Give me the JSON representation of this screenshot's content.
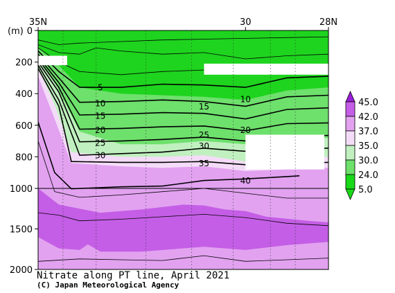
{
  "chart_data": {
    "type": "heatmap",
    "title": "Nitrate along PT line, April 2021",
    "credit": "(C) Japan Meteorological Agency",
    "ylabel": "(m)",
    "ylim": [
      0,
      2000
    ],
    "y_breaks_depth_m": [
      0,
      1000,
      2000
    ],
    "xlim_lat": [
      35,
      28
    ],
    "x_ticks": [
      "35N",
      "30",
      "28N"
    ],
    "y_ticks": [
      "0",
      "200",
      "400",
      "600",
      "800",
      "1000",
      "1500",
      "2000"
    ],
    "contour_labels": [
      {
        "text": "5",
        "lat": 33.5,
        "depth": 360
      },
      {
        "text": "10",
        "lat": 33.5,
        "depth": 460
      },
      {
        "text": "15",
        "lat": 33.5,
        "depth": 540
      },
      {
        "text": "20",
        "lat": 33.5,
        "depth": 630
      },
      {
        "text": "25",
        "lat": 33.5,
        "depth": 710
      },
      {
        "text": "30",
        "lat": 33.5,
        "depth": 790
      },
      {
        "text": "15",
        "lat": 31.0,
        "depth": 480
      },
      {
        "text": "25",
        "lat": 31.0,
        "depth": 660
      },
      {
        "text": "30",
        "lat": 31.0,
        "depth": 730
      },
      {
        "text": "35",
        "lat": 31.0,
        "depth": 840
      },
      {
        "text": "10",
        "lat": 30.0,
        "depth": 435
      },
      {
        "text": "20",
        "lat": 30.0,
        "depth": 630
      },
      {
        "text": "40",
        "lat": 30.0,
        "depth": 950
      }
    ],
    "colorbar": {
      "labels": [
        "45.0",
        "42.0",
        "37.0",
        "35.0",
        "30.0",
        "24.0",
        "5.0"
      ],
      "colors": [
        "#9b1fd8",
        "#c45ee6",
        "#e2a2f0",
        "#f4dcf8",
        "#c0f0bf",
        "#6ee06c",
        "#18d818"
      ]
    },
    "layers": [
      {
        "value": 5.0,
        "color": "#1ed41e",
        "top": [
          [
            35,
            0
          ],
          [
            28,
            0
          ]
        ]
      },
      {
        "value": 24.0,
        "color": "#6ee06c",
        "top": [
          [
            35,
            110
          ],
          [
            34.5,
            220
          ],
          [
            34,
            360
          ],
          [
            33,
            400
          ],
          [
            32,
            410
          ],
          [
            31,
            420
          ],
          [
            30,
            440
          ],
          [
            29,
            380
          ],
          [
            28,
            360
          ]
        ]
      },
      {
        "value": 30.0,
        "color": "#c0f0bf",
        "top": [
          [
            35,
            175
          ],
          [
            34.6,
            330
          ],
          [
            34,
            640
          ],
          [
            33,
            720
          ],
          [
            32,
            720
          ],
          [
            31,
            700
          ],
          [
            30,
            720
          ],
          [
            29,
            690
          ],
          [
            28,
            680
          ]
        ]
      },
      {
        "value": 35.0,
        "color": "#f4dcf8",
        "top": [
          [
            35,
            235
          ],
          [
            34.6,
            470
          ],
          [
            34.2,
            770
          ],
          [
            33,
            800
          ],
          [
            32,
            800
          ],
          [
            31,
            790
          ],
          [
            30,
            830
          ],
          [
            29,
            810
          ],
          [
            28,
            800
          ]
        ]
      },
      {
        "value": 37.0,
        "color": "#e2a2f0",
        "top": [
          [
            35,
            290
          ],
          [
            34.6,
            560
          ],
          [
            34.2,
            840
          ],
          [
            33,
            860
          ],
          [
            32,
            870
          ],
          [
            31,
            860
          ],
          [
            30,
            890
          ],
          [
            29,
            880
          ],
          [
            28,
            870
          ]
        ]
      },
      {
        "value": 42.0,
        "color": "#c45ee6",
        "top": [
          [
            35,
            1000
          ],
          [
            34.5,
            1200
          ],
          [
            33.5,
            1300
          ],
          [
            32.5,
            1260
          ],
          [
            31.5,
            1200
          ],
          [
            31,
            1210
          ],
          [
            30.5,
            1260
          ],
          [
            30,
            1280
          ],
          [
            29.5,
            1350
          ],
          [
            28.5,
            1400
          ],
          [
            28,
            1420
          ]
        ]
      },
      {
        "value": 37.0,
        "color": "#e2a2f0",
        "top": [
          [
            35,
            1600
          ],
          [
            34.5,
            1740
          ],
          [
            34,
            1760
          ],
          [
            33.8,
            1690
          ],
          [
            33.5,
            1780
          ],
          [
            32.5,
            1780
          ],
          [
            31,
            1720
          ],
          [
            30,
            1760
          ],
          [
            29,
            1700
          ],
          [
            28,
            1660
          ]
        ]
      }
    ],
    "contours": [
      {
        "value": 5,
        "bold": true,
        "points": [
          [
            35,
            130
          ],
          [
            34.5,
            260
          ],
          [
            34,
            360
          ],
          [
            33,
            360
          ],
          [
            32,
            340
          ],
          [
            31,
            345
          ],
          [
            30,
            360
          ],
          [
            29,
            300
          ],
          [
            28,
            290
          ]
        ]
      },
      {
        "value": 10,
        "bold": true,
        "points": [
          [
            35,
            150
          ],
          [
            34.5,
            300
          ],
          [
            34,
            455
          ],
          [
            33,
            450
          ],
          [
            32,
            440
          ],
          [
            31,
            450
          ],
          [
            30,
            480
          ],
          [
            29,
            420
          ],
          [
            28,
            410
          ]
        ]
      },
      {
        "value": 15,
        "bold": true,
        "points": [
          [
            35,
            165
          ],
          [
            34.5,
            330
          ],
          [
            34,
            535
          ],
          [
            33,
            530
          ],
          [
            32,
            520
          ],
          [
            31,
            525
          ],
          [
            30,
            560
          ],
          [
            29,
            500
          ],
          [
            28,
            490
          ]
        ]
      },
      {
        "value": 20,
        "bold": true,
        "points": [
          [
            35,
            180
          ],
          [
            34.5,
            360
          ],
          [
            34,
            625
          ],
          [
            33,
            620
          ],
          [
            32,
            610
          ],
          [
            31,
            605
          ],
          [
            30,
            635
          ],
          [
            29,
            590
          ],
          [
            28,
            585
          ]
        ]
      },
      {
        "value": 25,
        "bold": true,
        "points": [
          [
            35,
            200
          ],
          [
            34.5,
            390
          ],
          [
            34,
            705
          ],
          [
            33,
            700
          ],
          [
            32,
            690
          ],
          [
            31,
            675
          ],
          [
            30,
            700
          ],
          [
            29,
            670
          ],
          [
            28,
            665
          ]
        ]
      },
      {
        "value": 30,
        "bold": true,
        "points": [
          [
            35,
            220
          ],
          [
            34.5,
            440
          ],
          [
            34,
            790
          ],
          [
            33,
            780
          ],
          [
            32,
            770
          ],
          [
            31,
            745
          ],
          [
            30,
            765
          ],
          [
            29,
            750
          ],
          [
            28,
            745
          ]
        ]
      },
      {
        "value": 35,
        "bold": true,
        "points": [
          [
            35,
            240
          ],
          [
            34.5,
            480
          ],
          [
            34.2,
            830
          ],
          [
            33,
            835
          ],
          [
            32,
            835
          ],
          [
            31,
            830
          ],
          [
            30,
            850
          ],
          [
            29,
            840
          ],
          [
            28,
            835
          ]
        ]
      },
      {
        "value": 40,
        "bold": true,
        "points": [
          [
            35,
            580
          ],
          [
            34.6,
            900
          ],
          [
            34.2,
            1005
          ],
          [
            33,
            990
          ],
          [
            32,
            985
          ],
          [
            31,
            950
          ],
          [
            30,
            940
          ],
          [
            29,
            925
          ],
          [
            28.7,
            920
          ]
        ]
      },
      {
        "value": 2.5,
        "bold": false,
        "points": [
          [
            35,
            60
          ],
          [
            34.5,
            90
          ],
          [
            34,
            80
          ],
          [
            33,
            70
          ],
          [
            32,
            60
          ],
          [
            31,
            55
          ],
          [
            30,
            50
          ],
          [
            29,
            45
          ],
          [
            28,
            40
          ]
        ]
      },
      {
        "value": 3.5,
        "bold": false,
        "points": [
          [
            35,
            90
          ],
          [
            34.5,
            140
          ],
          [
            34,
            150
          ],
          [
            33.6,
            110
          ],
          [
            33,
            130
          ],
          [
            32,
            150
          ],
          [
            31,
            140
          ],
          [
            30,
            180
          ],
          [
            29,
            160
          ],
          [
            28,
            150
          ]
        ]
      },
      {
        "value": 4.5,
        "bold": false,
        "points": [
          [
            35,
            110
          ],
          [
            34.5,
            200
          ],
          [
            34,
            260
          ],
          [
            33,
            280
          ],
          [
            32,
            260
          ],
          [
            31,
            250
          ],
          [
            30,
            270
          ],
          [
            29,
            230
          ],
          [
            28,
            220
          ]
        ]
      },
      {
        "value": 41,
        "bold": false,
        "points": [
          [
            35,
            700
          ],
          [
            34.6,
            1040
          ],
          [
            34,
            1110
          ],
          [
            33,
            1080
          ],
          [
            32,
            1040
          ],
          [
            31,
            1000
          ],
          [
            30,
            1060
          ],
          [
            29,
            1120
          ],
          [
            28,
            1120
          ]
        ]
      },
      {
        "value": 43,
        "bold": false,
        "points": [
          [
            35,
            1300
          ],
          [
            34.5,
            1330
          ],
          [
            34,
            1400
          ],
          [
            33,
            1380
          ],
          [
            32,
            1350
          ],
          [
            31,
            1320
          ],
          [
            30,
            1360
          ],
          [
            29,
            1430
          ],
          [
            28,
            1460
          ]
        ]
      },
      {
        "value": 43,
        "bold": false,
        "points": [
          [
            35,
            1900
          ],
          [
            34,
            1870
          ],
          [
            33,
            1880
          ],
          [
            32,
            1890
          ],
          [
            31,
            1830
          ],
          [
            30,
            1900
          ],
          [
            29,
            1880
          ],
          [
            28,
            1860
          ]
        ]
      }
    ],
    "no_data": [
      {
        "lat": [
          35,
          34.3
        ],
        "depth": [
          160,
          220
        ]
      },
      {
        "lat": [
          31,
          28
        ],
        "depth": [
          210,
          280
        ]
      },
      {
        "lat": [
          30,
          28.1
        ],
        "depth": [
          660,
          880
        ]
      }
    ],
    "station_lats": [
      34.4,
      33.6,
      32.4,
      31.3,
      30.3,
      29.4,
      28.8
    ],
    "grid": "dotted",
    "reference_line_depth": 1000
  }
}
